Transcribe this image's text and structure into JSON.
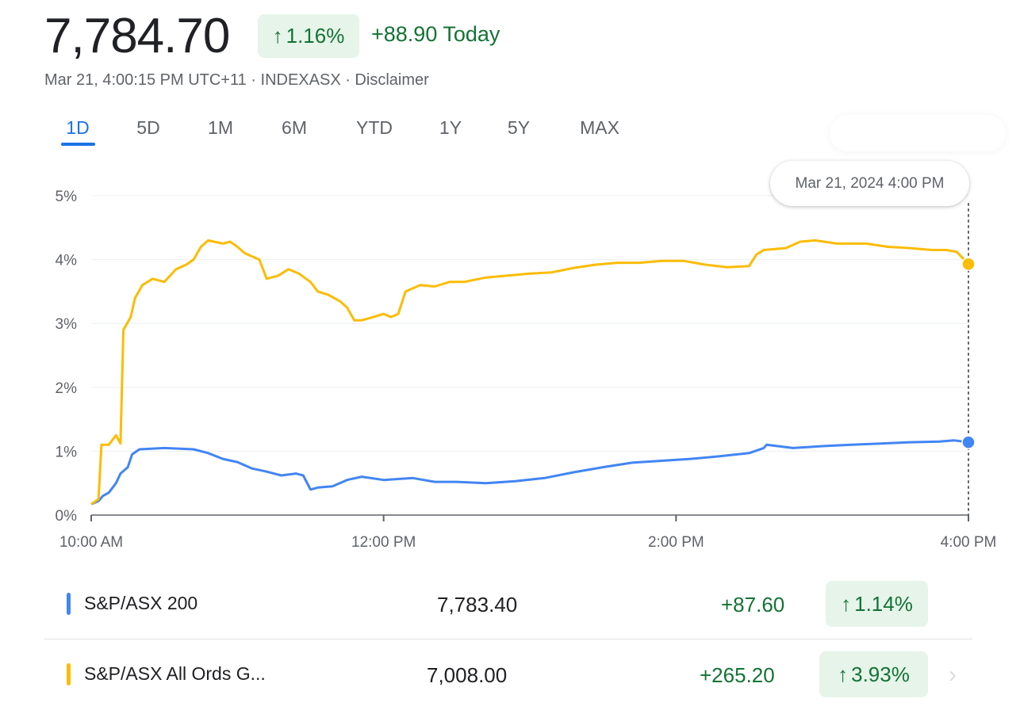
{
  "header": {
    "price": "7,784.70",
    "change_pct": "1.16%",
    "change_today": "+88.90 Today",
    "meta": "Mar 21, 4:00:15 PM UTC+11 · INDEXASX · Disclaimer"
  },
  "tabs": [
    "1D",
    "5D",
    "1M",
    "6M",
    "YTD",
    "1Y",
    "5Y",
    "MAX"
  ],
  "tooltip": "Mar 21, 2024 4:00 PM",
  "colors": {
    "blue": "#4285f4",
    "yellow": "#fbbc04",
    "green": "#137333",
    "green_bg": "#e6f4ea",
    "accent": "#1a73e8"
  },
  "rows": [
    {
      "name": "S&P/ASX 200",
      "price": "7,783.40",
      "change": "+87.60",
      "pct": "1.14%",
      "color": "#4285f4"
    },
    {
      "name": "S&P/ASX All Ords G...",
      "price": "7,008.00",
      "change": "+265.20",
      "pct": "3.93%",
      "color": "#fbbc04"
    }
  ],
  "chart_data": {
    "type": "line",
    "x_unit": "hours",
    "x_ticks": [
      {
        "value": 10,
        "label": "10:00 AM"
      },
      {
        "value": 12,
        "label": "12:00 PM"
      },
      {
        "value": 14,
        "label": "2:00 PM"
      },
      {
        "value": 16,
        "label": "4:00 PM"
      }
    ],
    "y_ticks": [
      {
        "value": 0,
        "label": "0%"
      },
      {
        "value": 1,
        "label": "1%"
      },
      {
        "value": 2,
        "label": "2%"
      },
      {
        "value": 3,
        "label": "3%"
      },
      {
        "value": 4,
        "label": "4%"
      },
      {
        "value": 5,
        "label": "5%"
      }
    ],
    "xlim": [
      10,
      16
    ],
    "ylim": [
      0,
      5
    ],
    "grid": true,
    "series": [
      {
        "name": "S&P/ASX 200",
        "color": "#4285f4",
        "points": [
          [
            10.0,
            0.17
          ],
          [
            10.05,
            0.22
          ],
          [
            10.08,
            0.3
          ],
          [
            10.12,
            0.35
          ],
          [
            10.17,
            0.5
          ],
          [
            10.2,
            0.65
          ],
          [
            10.25,
            0.75
          ],
          [
            10.28,
            0.95
          ],
          [
            10.33,
            1.03
          ],
          [
            10.5,
            1.05
          ],
          [
            10.7,
            1.03
          ],
          [
            10.8,
            0.97
          ],
          [
            10.9,
            0.88
          ],
          [
            11.0,
            0.83
          ],
          [
            11.1,
            0.73
          ],
          [
            11.2,
            0.68
          ],
          [
            11.3,
            0.62
          ],
          [
            11.4,
            0.65
          ],
          [
            11.45,
            0.62
          ],
          [
            11.5,
            0.4
          ],
          [
            11.55,
            0.43
          ],
          [
            11.65,
            0.45
          ],
          [
            11.75,
            0.55
          ],
          [
            11.85,
            0.6
          ],
          [
            12.0,
            0.55
          ],
          [
            12.2,
            0.58
          ],
          [
            12.35,
            0.52
          ],
          [
            12.5,
            0.52
          ],
          [
            12.7,
            0.5
          ],
          [
            12.9,
            0.53
          ],
          [
            13.1,
            0.58
          ],
          [
            13.3,
            0.67
          ],
          [
            13.5,
            0.75
          ],
          [
            13.7,
            0.82
          ],
          [
            13.9,
            0.85
          ],
          [
            14.1,
            0.88
          ],
          [
            14.3,
            0.92
          ],
          [
            14.5,
            0.97
          ],
          [
            14.6,
            1.05
          ],
          [
            14.62,
            1.1
          ],
          [
            14.8,
            1.05
          ],
          [
            15.0,
            1.08
          ],
          [
            15.2,
            1.1
          ],
          [
            15.4,
            1.12
          ],
          [
            15.6,
            1.14
          ],
          [
            15.8,
            1.15
          ],
          [
            15.9,
            1.17
          ],
          [
            16.0,
            1.14
          ]
        ]
      },
      {
        "name": "S&P/ASX All Ords G...",
        "color": "#fbbc04",
        "points": [
          [
            10.0,
            0.17
          ],
          [
            10.05,
            0.25
          ],
          [
            10.07,
            1.1
          ],
          [
            10.12,
            1.1
          ],
          [
            10.17,
            1.25
          ],
          [
            10.2,
            1.12
          ],
          [
            10.22,
            2.9
          ],
          [
            10.27,
            3.1
          ],
          [
            10.3,
            3.4
          ],
          [
            10.35,
            3.6
          ],
          [
            10.42,
            3.7
          ],
          [
            10.5,
            3.65
          ],
          [
            10.58,
            3.85
          ],
          [
            10.65,
            3.92
          ],
          [
            10.7,
            4.0
          ],
          [
            10.75,
            4.2
          ],
          [
            10.8,
            4.3
          ],
          [
            10.9,
            4.25
          ],
          [
            10.95,
            4.28
          ],
          [
            11.0,
            4.2
          ],
          [
            11.05,
            4.1
          ],
          [
            11.1,
            4.05
          ],
          [
            11.15,
            4.0
          ],
          [
            11.2,
            3.7
          ],
          [
            11.28,
            3.75
          ],
          [
            11.35,
            3.85
          ],
          [
            11.42,
            3.78
          ],
          [
            11.5,
            3.65
          ],
          [
            11.55,
            3.5
          ],
          [
            11.62,
            3.45
          ],
          [
            11.7,
            3.35
          ],
          [
            11.75,
            3.25
          ],
          [
            11.8,
            3.05
          ],
          [
            11.85,
            3.05
          ],
          [
            11.93,
            3.1
          ],
          [
            12.0,
            3.15
          ],
          [
            12.05,
            3.1
          ],
          [
            12.1,
            3.15
          ],
          [
            12.15,
            3.5
          ],
          [
            12.25,
            3.6
          ],
          [
            12.35,
            3.58
          ],
          [
            12.45,
            3.65
          ],
          [
            12.55,
            3.65
          ],
          [
            12.7,
            3.72
          ],
          [
            12.85,
            3.75
          ],
          [
            13.0,
            3.78
          ],
          [
            13.15,
            3.8
          ],
          [
            13.3,
            3.87
          ],
          [
            13.45,
            3.92
          ],
          [
            13.6,
            3.95
          ],
          [
            13.75,
            3.95
          ],
          [
            13.9,
            3.98
          ],
          [
            14.05,
            3.98
          ],
          [
            14.2,
            3.92
          ],
          [
            14.35,
            3.88
          ],
          [
            14.5,
            3.9
          ],
          [
            14.55,
            4.08
          ],
          [
            14.6,
            4.15
          ],
          [
            14.75,
            4.18
          ],
          [
            14.85,
            4.28
          ],
          [
            14.95,
            4.3
          ],
          [
            15.1,
            4.25
          ],
          [
            15.3,
            4.25
          ],
          [
            15.45,
            4.2
          ],
          [
            15.6,
            4.18
          ],
          [
            15.75,
            4.15
          ],
          [
            15.85,
            4.15
          ],
          [
            15.92,
            4.12
          ],
          [
            16.0,
            3.93
          ]
        ]
      }
    ]
  }
}
